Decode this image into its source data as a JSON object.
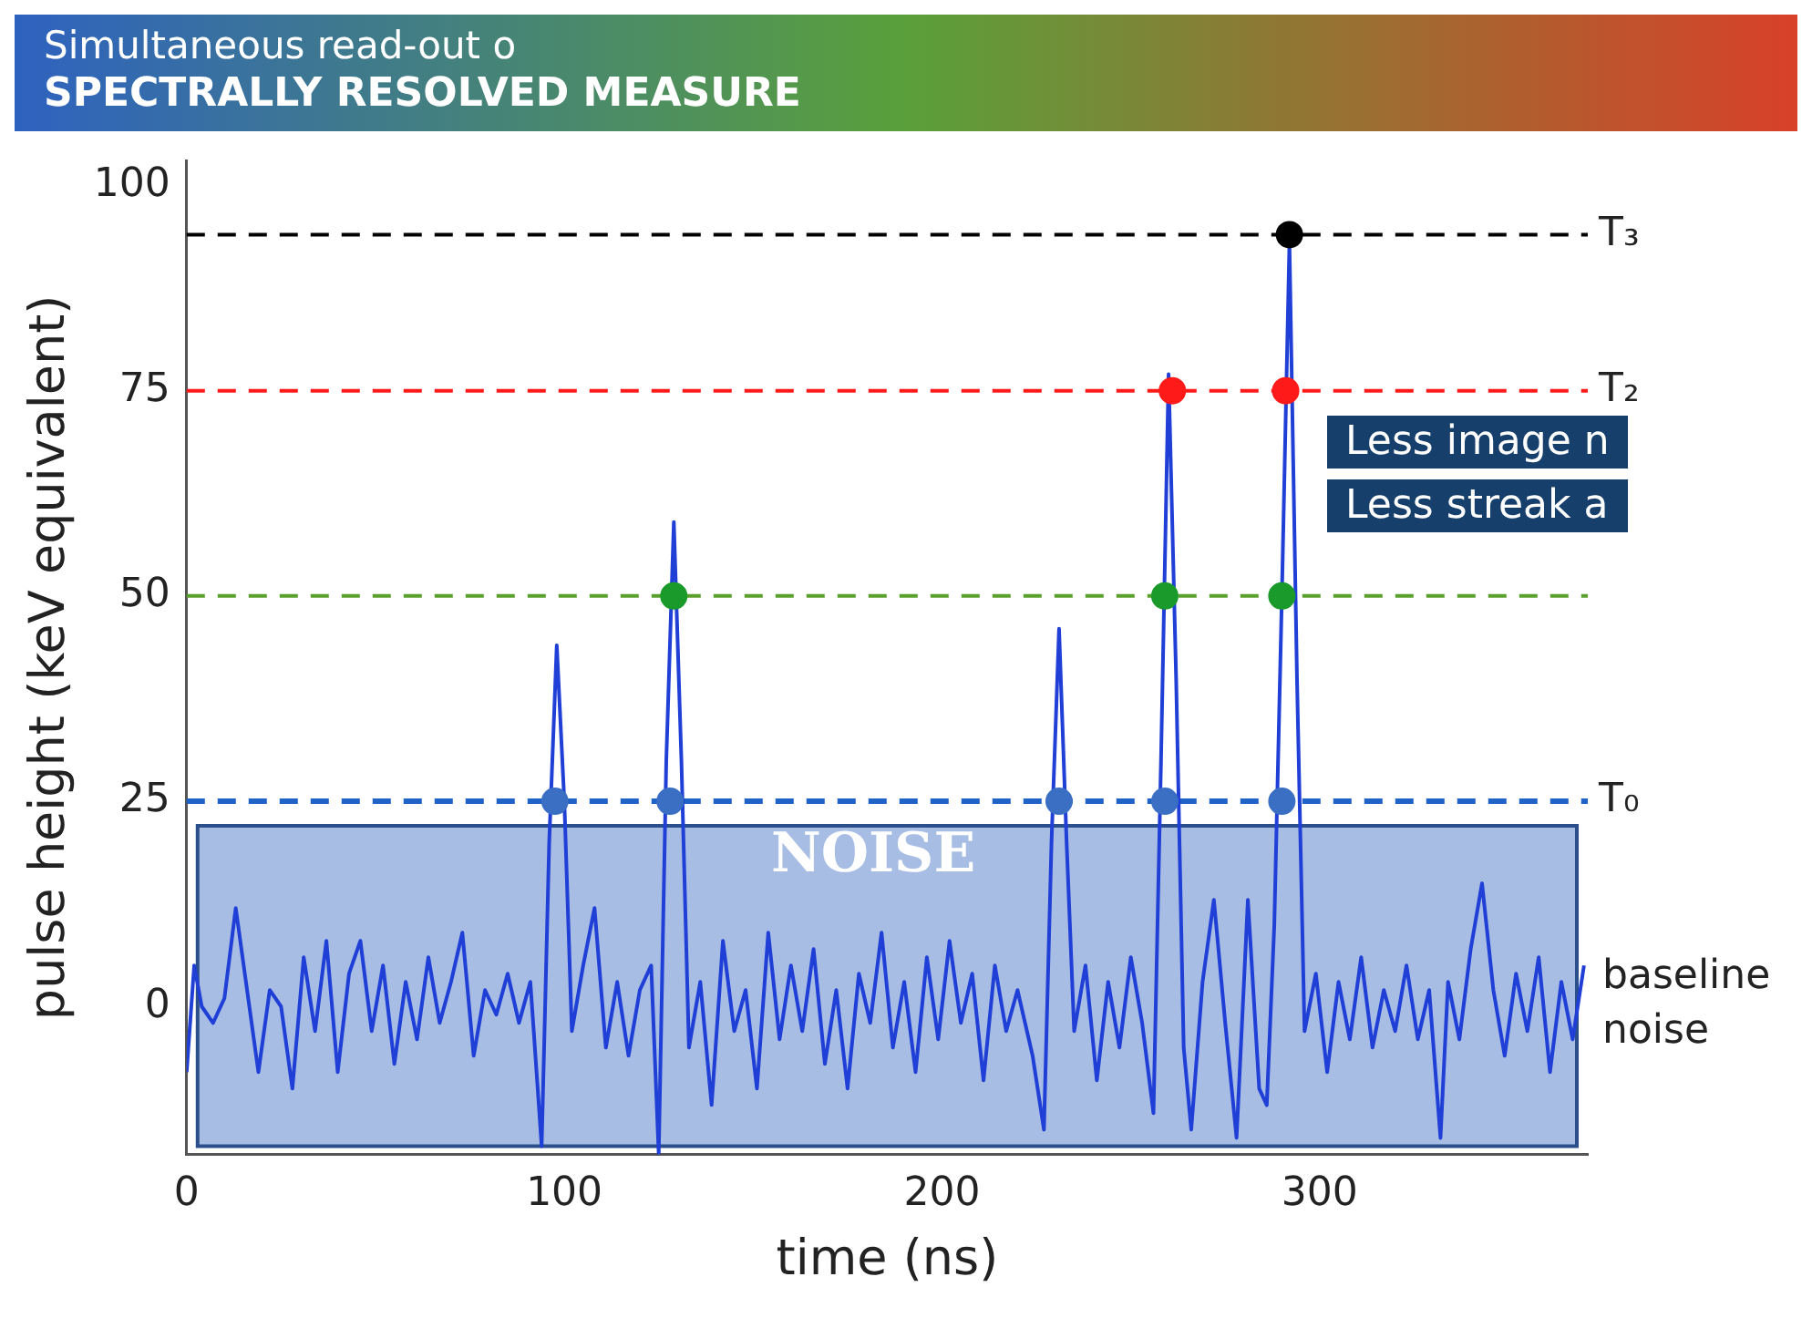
{
  "chart_data": {
    "type": "line",
    "xlabel": "time (ns)",
    "ylabel": "pulse height (keV equivalent)",
    "xlim": [
      0,
      371
    ],
    "ylim": [
      -18,
      103
    ],
    "xticks": [
      0,
      100,
      200,
      300
    ],
    "yticks": [
      0,
      25,
      50,
      75,
      100
    ],
    "grid": false,
    "legend": false,
    "series": [
      {
        "type": "line",
        "color": "#1f3fd6",
        "marker": "none",
        "line_style": "solid",
        "x": [
          0,
          2,
          4,
          7,
          10,
          13,
          16,
          19,
          22,
          25,
          28,
          31,
          34,
          37,
          40,
          43,
          46,
          49,
          52,
          55,
          58,
          61,
          64,
          67,
          70,
          73,
          76,
          79,
          82,
          85,
          88,
          91,
          94,
          96,
          98,
          100,
          102,
          105,
          108,
          111,
          114,
          117,
          120,
          123,
          125,
          127,
          129,
          131,
          133,
          136,
          139,
          142,
          145,
          148,
          151,
          154,
          157,
          160,
          163,
          166,
          169,
          172,
          175,
          178,
          181,
          184,
          187,
          190,
          193,
          196,
          199,
          202,
          205,
          208,
          211,
          214,
          217,
          220,
          224,
          227,
          229,
          231,
          233,
          235,
          238,
          241,
          244,
          247,
          250,
          253,
          256,
          258,
          260,
          262,
          264,
          266,
          269,
          272,
          275,
          278,
          281,
          284,
          286,
          288,
          290,
          292,
          294,
          296,
          299,
          302,
          305,
          308,
          311,
          314,
          317,
          320,
          323,
          326,
          329,
          332,
          334,
          337,
          340,
          343,
          346,
          349,
          352,
          355,
          358,
          361,
          364,
          367,
          370
        ],
        "values": [
          -8,
          5,
          0,
          -2,
          1,
          12,
          2,
          -8,
          2,
          0,
          -10,
          6,
          -3,
          8,
          -8,
          4,
          8,
          -3,
          5,
          -7,
          3,
          -4,
          6,
          -2,
          3,
          9,
          -6,
          2,
          -1,
          4,
          -2,
          3,
          -17,
          20,
          44,
          25,
          -3,
          5,
          12,
          -5,
          3,
          -6,
          2,
          5,
          -18,
          30,
          59,
          30,
          -5,
          3,
          -12,
          8,
          -3,
          2,
          -10,
          9,
          -4,
          5,
          -3,
          7,
          -7,
          2,
          -10,
          4,
          -2,
          9,
          -5,
          3,
          -8,
          6,
          -4,
          8,
          -2,
          4,
          -9,
          5,
          -3,
          2,
          -6,
          -15,
          20,
          46,
          20,
          -3,
          5,
          -9,
          3,
          -5,
          6,
          -2,
          -13,
          30,
          77,
          40,
          -5,
          -15,
          3,
          13,
          -2,
          -16,
          13,
          -10,
          -12,
          10,
          50,
          93,
          40,
          -3,
          4,
          -8,
          3,
          -4,
          6,
          -5,
          2,
          -3,
          5,
          -4,
          2,
          -16,
          3,
          -4,
          7,
          15,
          2,
          -6,
          4,
          -3,
          6,
          -8,
          3,
          -4,
          5
        ]
      },
      {
        "type": "scatter",
        "color": "#3a6fc4",
        "marker": "circle",
        "x": [
          97.5,
          128,
          231,
          259,
          290
        ],
        "values": [
          25,
          25,
          25,
          25,
          25
        ]
      },
      {
        "type": "scatter",
        "color": "#1a9a2a",
        "marker": "circle",
        "x": [
          129,
          259,
          290
        ],
        "values": [
          50,
          50,
          50
        ]
      },
      {
        "type": "scatter",
        "color": "#ff1a1a",
        "marker": "circle",
        "x": [
          261,
          291
        ],
        "values": [
          75,
          75
        ]
      },
      {
        "type": "scatter",
        "color": "#000000",
        "marker": "circle",
        "x": [
          292
        ],
        "values": [
          94
        ]
      }
    ],
    "ref_lines": [
      {
        "axis": "y",
        "value": 94,
        "label": "T₃",
        "color": "#000000",
        "line_style": "dashed"
      },
      {
        "axis": "y",
        "value": 75,
        "label": "T₂",
        "color": "#ff1a1a",
        "line_style": "dashed"
      },
      {
        "axis": "y",
        "value": 50,
        "color": "#5aa02c",
        "line_style": "dashed"
      },
      {
        "axis": "y",
        "value": 25,
        "label": "T₀",
        "color": "#1f62c8",
        "line_style": "dashed"
      }
    ],
    "bands": [
      {
        "axis": "y",
        "from": -17,
        "to": 22,
        "label": "NOISE",
        "color": "#7f9fd8"
      }
    ],
    "annotations": [
      "Simultaneous read-out o",
      "SPECTRALLY RESOLVED MEASURE",
      "Less image n",
      "Less streak a",
      "baseline noise"
    ]
  }
}
